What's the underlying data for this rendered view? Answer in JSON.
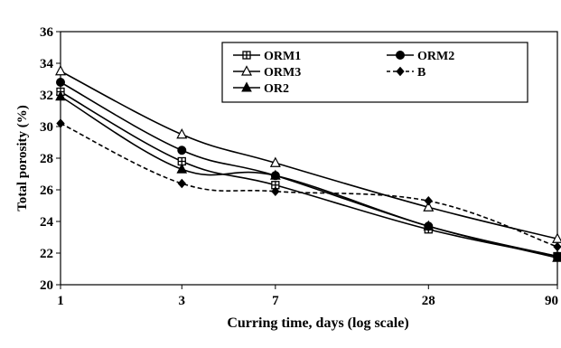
{
  "chart_data": {
    "type": "line",
    "xlabel": "Curring time, days (log scale)",
    "ylabel": "Total porosity (%)",
    "x_scale": "log",
    "x": [
      1,
      3,
      7,
      28,
      90
    ],
    "x_tick_labels": [
      "1",
      "3",
      "7",
      "28",
      "90"
    ],
    "ylim": [
      20,
      36
    ],
    "y_ticks": [
      20,
      22,
      24,
      26,
      28,
      30,
      32,
      34,
      36
    ],
    "grid": false,
    "legend_position": "top-right",
    "series": [
      {
        "name": "ORM1",
        "values": [
          32.2,
          27.8,
          26.3,
          23.5,
          21.8
        ],
        "marker": "square-cross",
        "line": "solid"
      },
      {
        "name": "ORM2",
        "values": [
          32.8,
          28.5,
          26.9,
          23.7,
          21.8
        ],
        "marker": "circle",
        "line": "solid"
      },
      {
        "name": "ORM3",
        "values": [
          33.5,
          29.5,
          27.7,
          24.9,
          22.9
        ],
        "marker": "triangle-open",
        "line": "solid"
      },
      {
        "name": "B",
        "values": [
          30.2,
          26.4,
          25.9,
          25.3,
          22.4
        ],
        "marker": "diamond",
        "line": "dashed"
      },
      {
        "name": "OR2",
        "values": [
          31.9,
          27.3,
          26.9,
          23.7,
          21.7
        ],
        "marker": "triangle",
        "line": "solid"
      }
    ]
  }
}
